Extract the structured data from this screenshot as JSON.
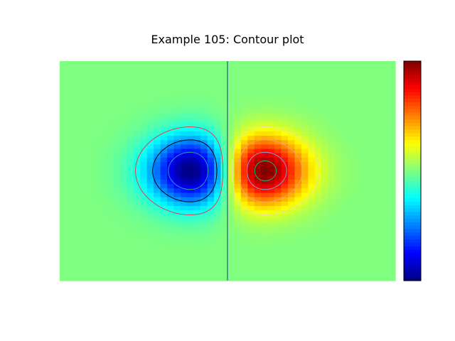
{
  "chart_data": {
    "type": "heatmap",
    "title": "Example 105: Contour plot",
    "xlabel": "",
    "ylabel": "",
    "xlim": [
      -1,
      1
    ],
    "ylim": [
      -1,
      1
    ],
    "zlim": [
      -1,
      1
    ],
    "grid_size": [
      50,
      50
    ],
    "function": "z = x * exp(-(x^2 + y^2) / 0.1) normalized to [-1, 1]",
    "colormap": "jet",
    "colorbar": "right",
    "shading": "flat",
    "divider_at_x": 0,
    "divider_color": "#1a3a8a",
    "contours": [
      {
        "level": -0.75,
        "color": "#2aa198"
      },
      {
        "level": -0.45,
        "color": "#000000"
      },
      {
        "level": -0.2,
        "color": "#e0404a"
      },
      {
        "level": 0.2,
        "color": "#f2dfa0"
      },
      {
        "level": 0.45,
        "color": "#f0a080"
      },
      {
        "level": 0.75,
        "color": "#8a9ad8"
      },
      {
        "level": 0.92,
        "color": "#20b070"
      }
    ]
  }
}
